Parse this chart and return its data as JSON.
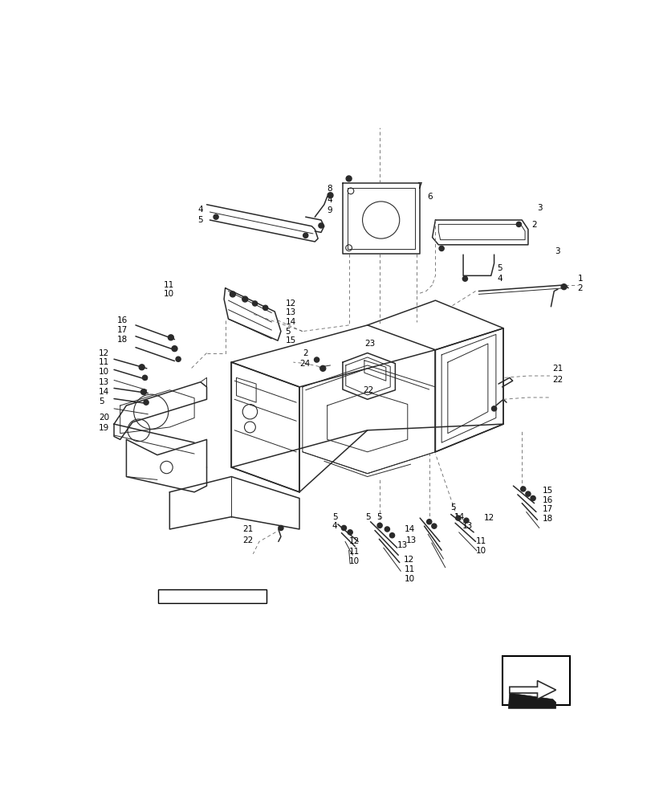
{
  "bg_color": "#ffffff",
  "lc": "#2a2a2a",
  "dc": "#666666",
  "fs": 7.5,
  "lw_main": 1.1,
  "lw_thin": 0.7,
  "lw_dashed": 0.6,
  "figsize": [
    8.12,
    10.0
  ],
  "dpi": 100
}
